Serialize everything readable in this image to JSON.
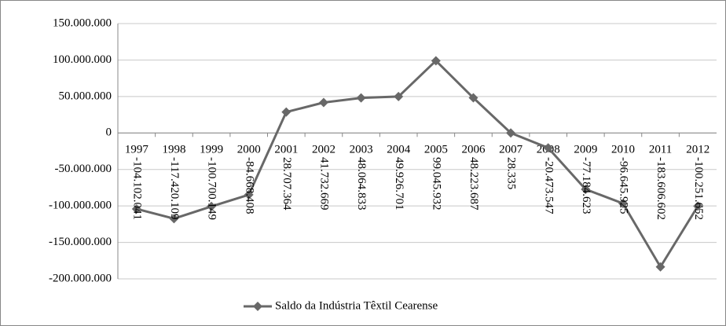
{
  "chart_data": {
    "type": "line",
    "categories": [
      "1997",
      "1998",
      "1999",
      "2000",
      "2001",
      "2002",
      "2003",
      "2004",
      "2005",
      "2006",
      "2007",
      "2008",
      "2009",
      "2010",
      "2011",
      "2012"
    ],
    "series": [
      {
        "name": "Saldo da Indústria Têxtil Cearense",
        "color": "#686868",
        "values": [
          -104102041,
          -117420109,
          -100700149,
          -84668408,
          28707364,
          41732669,
          48064833,
          49926701,
          99045932,
          48223687,
          28335,
          -20473547,
          -77184623,
          -96645925,
          -183606602,
          -100251652
        ],
        "value_labels": [
          "-104.102.041",
          "-117.420.109",
          "-100.700.149",
          "-84.668.408",
          "28.707.364",
          "41.732.669",
          "48.064.833",
          "49.926.701",
          "99.045.932",
          "48.223.687",
          "28.335",
          "-20.473.547",
          "-77.184.623",
          "-96.645.925",
          "-183.606.602",
          "-100.251.652"
        ]
      }
    ],
    "ylim": [
      -200000000,
      150000000
    ],
    "yticks": [
      {
        "value": -200000000,
        "label": "-200.000.000"
      },
      {
        "value": -150000000,
        "label": "-150.000.000"
      },
      {
        "value": -100000000,
        "label": "-100.000.000"
      },
      {
        "value": -50000000,
        "label": "-50.000.000"
      },
      0,
      {
        "value": 50000000,
        "label": "50.000.000"
      },
      {
        "value": 100000000,
        "label": "100.000.000"
      },
      {
        "value": 150000000,
        "label": "150.000.000"
      }
    ],
    "grid": true,
    "legend": "bottom"
  }
}
